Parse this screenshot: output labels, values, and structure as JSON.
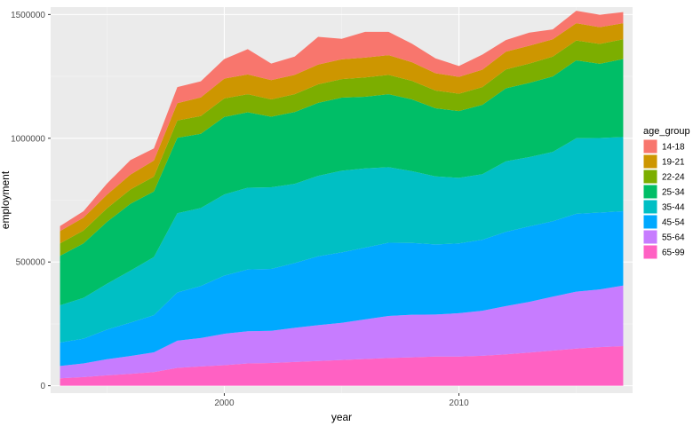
{
  "chart_data": {
    "type": "area",
    "stacked": true,
    "title": "",
    "xlabel": "year",
    "ylabel": "employment",
    "xlim": [
      1992.6,
      2017.4
    ],
    "ylim": [
      -30000,
      1530000
    ],
    "x_ticks": [
      2000,
      2010
    ],
    "x_tick_labels": [
      "2000",
      "2010"
    ],
    "y_ticks": [
      0,
      500000,
      1000000,
      1500000
    ],
    "y_tick_labels": [
      "0",
      "500000",
      "1000000",
      "1500000"
    ],
    "grid": true,
    "legend_title": "age_group",
    "legend_position": "right",
    "x": [
      1993,
      1994,
      1995,
      1996,
      1997,
      1998,
      1999,
      2000,
      2001,
      2002,
      2003,
      2004,
      2005,
      2006,
      2007,
      2008,
      2009,
      2010,
      2011,
      2012,
      2013,
      2014,
      2015,
      2016,
      2017
    ],
    "series": [
      {
        "name": "65-99",
        "color": "#FF61C3",
        "values": [
          30000,
          35000,
          42000,
          48000,
          55000,
          72000,
          78000,
          83000,
          90000,
          92000,
          96000,
          100000,
          104000,
          108000,
          112000,
          115000,
          118000,
          118000,
          121000,
          127000,
          134000,
          142000,
          150000,
          156000,
          160000
        ]
      },
      {
        "name": "55-64",
        "color": "#C77CFF",
        "values": [
          50000,
          55000,
          65000,
          72000,
          80000,
          110000,
          115000,
          127000,
          130000,
          130000,
          138000,
          145000,
          150000,
          160000,
          170000,
          172000,
          170000,
          175000,
          182000,
          195000,
          205000,
          218000,
          230000,
          233000,
          245000
        ]
      },
      {
        "name": "45-54",
        "color": "#00A9FF",
        "values": [
          95000,
          100000,
          120000,
          135000,
          150000,
          195000,
          210000,
          235000,
          250000,
          250000,
          262000,
          278000,
          285000,
          290000,
          296000,
          290000,
          283000,
          282000,
          287000,
          300000,
          305000,
          305000,
          315000,
          311000,
          300000
        ]
      },
      {
        "name": "35-44",
        "color": "#00BFC4",
        "values": [
          150000,
          165000,
          185000,
          210000,
          235000,
          320000,
          315000,
          328000,
          330000,
          330000,
          320000,
          325000,
          330000,
          320000,
          305000,
          290000,
          275000,
          265000,
          265000,
          285000,
          280000,
          280000,
          305000,
          301000,
          300000
        ]
      },
      {
        "name": "25-34",
        "color": "#00BE67",
        "values": [
          200000,
          220000,
          250000,
          270000,
          265000,
          305000,
          300000,
          313000,
          305000,
          285000,
          290000,
          295000,
          295000,
          290000,
          295000,
          290000,
          275000,
          270000,
          280000,
          295000,
          300000,
          305000,
          315000,
          300000,
          315000
        ]
      },
      {
        "name": "22-24",
        "color": "#7CAE00",
        "values": [
          50000,
          52000,
          55000,
          58000,
          60000,
          70000,
          72000,
          75000,
          73000,
          70000,
          72000,
          75000,
          75000,
          78000,
          78000,
          75000,
          72000,
          70000,
          72000,
          76000,
          78000,
          80000,
          80000,
          80000,
          80000
        ]
      },
      {
        "name": "19-21",
        "color": "#CD9600",
        "values": [
          50000,
          52000,
          55000,
          60000,
          65000,
          70000,
          75000,
          80000,
          80000,
          78000,
          78000,
          80000,
          80000,
          80000,
          80000,
          75000,
          70000,
          68000,
          70000,
          72000,
          72000,
          70000,
          70000,
          68000,
          65000
        ]
      },
      {
        "name": "14-18",
        "color": "#F8766D",
        "values": [
          20000,
          26000,
          45000,
          59000,
          49000,
          65000,
          65000,
          79000,
          102000,
          67000,
          74000,
          112000,
          83000,
          104000,
          94000,
          75000,
          60000,
          44000,
          61000,
          47000,
          53000,
          40000,
          50000,
          50000,
          45000
        ]
      }
    ],
    "stack_order": [
      "65-99",
      "55-64",
      "45-54",
      "35-44",
      "25-34",
      "22-24",
      "19-21",
      "14-18"
    ]
  }
}
